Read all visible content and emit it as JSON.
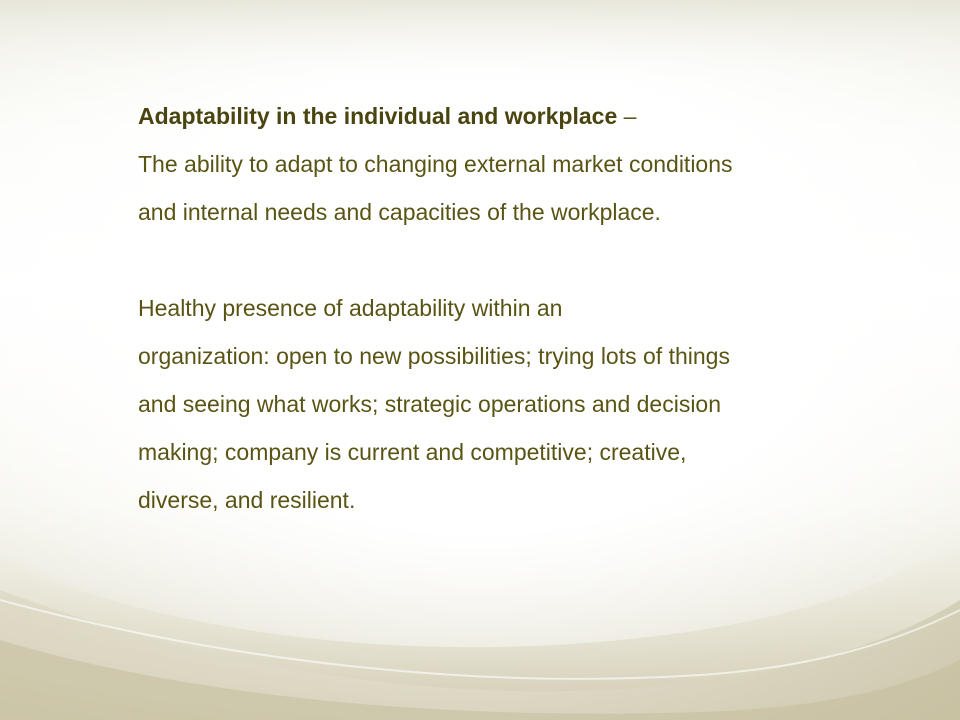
{
  "slide": {
    "heading": {
      "bold_text": "Adaptability in the individual and workplace",
      "suffix": " –"
    },
    "definition_lines": [
      "The ability to adapt to changing external market conditions",
      "and internal needs and capacities of the workplace."
    ],
    "presence_lines": [
      "Healthy presence of adaptability within an",
      "organization: open to new possibilities; trying lots of things",
      "and seeing what works; strategic operations and decision",
      "making; company is current and competitive; creative,",
      "diverse, and resilient."
    ]
  },
  "colors": {
    "text": "#5a5414",
    "heading": "#4a4410",
    "background_accent": "#d8d3bc"
  }
}
